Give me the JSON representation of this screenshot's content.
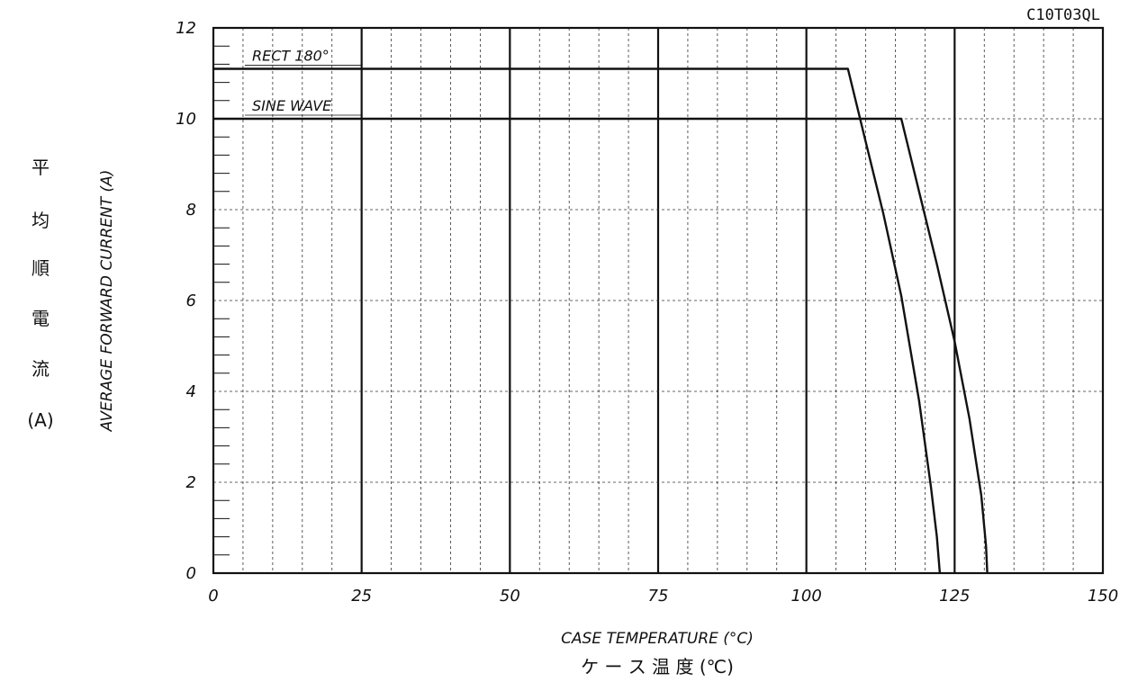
{
  "chart_data": {
    "type": "line",
    "code": "C10T03QL",
    "xlabel": "CASE TEMPERATURE (°C)",
    "xlabel_jp": "ケ ー ス 温 度 (℃)",
    "ylabel": "AVERAGE FORWARD CURRENT (A)",
    "ylabel_jp": [
      "平",
      "均",
      "順",
      "電",
      "流",
      "(A)"
    ],
    "xlim": [
      0,
      150
    ],
    "ylim": [
      0,
      12
    ],
    "x_ticks": [
      "0",
      "25",
      "50",
      "75",
      "100",
      "125",
      "150"
    ],
    "y_ticks": [
      "0",
      "2",
      "4",
      "6",
      "8",
      "10",
      "12"
    ],
    "grid": true,
    "series": [
      {
        "name": "RECT 180°",
        "x": [
          0,
          107,
          110,
          113,
          116,
          119,
          121,
          122,
          122.5
        ],
        "y": [
          11.1,
          11.1,
          9.5,
          7.9,
          6.1,
          3.8,
          1.9,
          0.8,
          0
        ]
      },
      {
        "name": "SINE WAVE",
        "x": [
          0,
          116,
          119,
          122,
          125,
          127.5,
          129.5,
          130.3,
          130.5
        ],
        "y": [
          10.0,
          10.0,
          8.4,
          6.8,
          5.1,
          3.4,
          1.7,
          0.6,
          0
        ]
      }
    ]
  }
}
